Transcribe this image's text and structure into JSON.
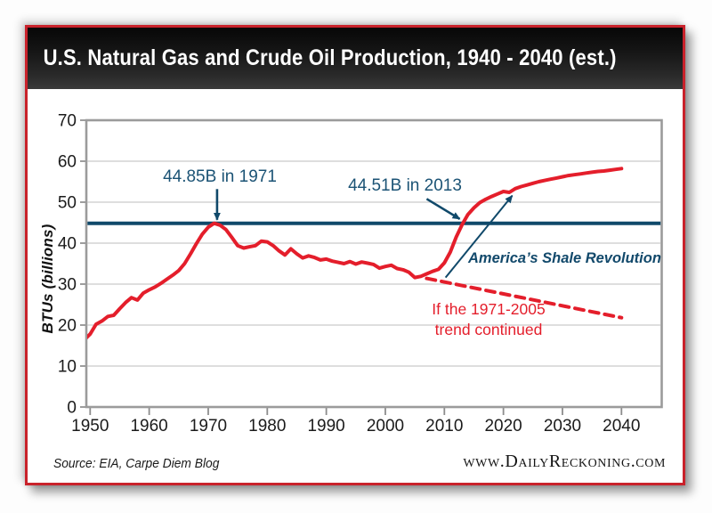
{
  "header": {
    "title": "U.S. Natural Gas and Crude Oil Production, 1940 - 2040 (est.)"
  },
  "footer": {
    "source": "Source: EIA, Carpe Diem Blog",
    "website": "www.DailyReckoning.com"
  },
  "colors": {
    "series_red": "#e41e2b",
    "teal_line": "#10496a",
    "teal_text": "#1b5375",
    "frame_border_red": "#c9222b",
    "grid_gray": "#c9c9c9",
    "axis_gray": "#9b9b9b",
    "banner_black": "#161616"
  },
  "chart_data": {
    "type": "line",
    "title": "U.S. Natural Gas and Crude Oil Production, 1940 - 2040 (est.)",
    "xlabel": "",
    "ylabel": "BTUs (billions)",
    "ylim": [
      0,
      70
    ],
    "xlim": [
      1949,
      2046
    ],
    "yticks": [
      0,
      10,
      20,
      30,
      40,
      50,
      60,
      70
    ],
    "xticks": [
      1950,
      1960,
      1970,
      1980,
      1990,
      2000,
      2010,
      2020,
      2030,
      2040
    ],
    "grid": "horizontal",
    "legend": "none",
    "reference_line": {
      "value": 44.85,
      "color": "#10496a",
      "width": 4
    },
    "series": [
      {
        "name": "U.S. natural gas and crude oil production",
        "style": "solid",
        "color": "#e41e2b",
        "x": [
          1949,
          1950,
          1951,
          1952,
          1953,
          1954,
          1955,
          1956,
          1957,
          1958,
          1959,
          1960,
          1961,
          1962,
          1963,
          1964,
          1965,
          1966,
          1967,
          1968,
          1969,
          1970,
          1971,
          1972,
          1973,
          1974,
          1975,
          1976,
          1977,
          1978,
          1979,
          1980,
          1981,
          1982,
          1983,
          1984,
          1985,
          1986,
          1987,
          1988,
          1989,
          1990,
          1991,
          1992,
          1993,
          1994,
          1995,
          1996,
          1997,
          1998,
          1999,
          2000,
          2001,
          2002,
          2003,
          2004,
          2005,
          2006,
          2007,
          2008,
          2009,
          2010,
          2011,
          2012,
          2013,
          2014,
          2015,
          2016,
          2017,
          2018,
          2019,
          2020,
          2021,
          2022,
          2023,
          2024,
          2025,
          2026,
          2027,
          2028,
          2029,
          2030,
          2031,
          2032,
          2033,
          2034,
          2035,
          2036,
          2037,
          2038,
          2039,
          2040
        ],
        "values": [
          16.4,
          17.8,
          20.2,
          21.0,
          22.1,
          22.4,
          24.0,
          25.5,
          26.7,
          26.1,
          27.8,
          28.6,
          29.3,
          30.2,
          31.2,
          32.2,
          33.3,
          35.0,
          37.4,
          39.9,
          42.2,
          43.9,
          44.85,
          44.4,
          43.3,
          41.4,
          39.4,
          38.8,
          39.1,
          39.4,
          40.5,
          40.3,
          39.4,
          38.1,
          37.1,
          38.6,
          37.4,
          36.4,
          36.9,
          36.5,
          35.9,
          36.1,
          35.6,
          35.3,
          35.0,
          35.5,
          34.9,
          35.4,
          35.1,
          34.8,
          33.9,
          34.3,
          34.6,
          33.8,
          33.5,
          32.9,
          31.6,
          31.9,
          32.5,
          33.1,
          33.6,
          35.2,
          37.8,
          41.5,
          44.51,
          47.0,
          48.6,
          49.9,
          50.7,
          51.4,
          52.0,
          52.6,
          52.4,
          53.3,
          53.8,
          54.2,
          54.6,
          55.0,
          55.3,
          55.6,
          55.9,
          56.2,
          56.5,
          56.7,
          56.9,
          57.1,
          57.3,
          57.5,
          57.6,
          57.8,
          58.0,
          58.2
        ]
      },
      {
        "name": "If the 1971-2005 trend continued",
        "style": "dashed",
        "color": "#e41e2b",
        "x": [
          2007,
          2040
        ],
        "values": [
          31.4,
          21.8
        ]
      }
    ],
    "annotations": [
      {
        "text": "44.85B in 1971",
        "color": "#1b5375",
        "arrow": {
          "from": [
            1971.5,
            53.2
          ],
          "to": [
            1971.5,
            45.7
          ],
          "width": 2.6
        }
      },
      {
        "text": "44.51B in 2013",
        "color": "#1b5375",
        "arrow": {
          "from": [
            2007.0,
            50.8
          ],
          "to": [
            2012.6,
            45.9
          ],
          "width": 2.6
        }
      },
      {
        "text": "America’s Shale Revolution",
        "color": "#12496b",
        "arrow": {
          "from": [
            2010.2,
            31.6
          ],
          "to": [
            2021.5,
            51.6
          ],
          "width": 2.0
        }
      },
      {
        "lines": [
          "If the 1971-2005",
          "trend continued"
        ],
        "color": "#e41e2b"
      }
    ]
  }
}
